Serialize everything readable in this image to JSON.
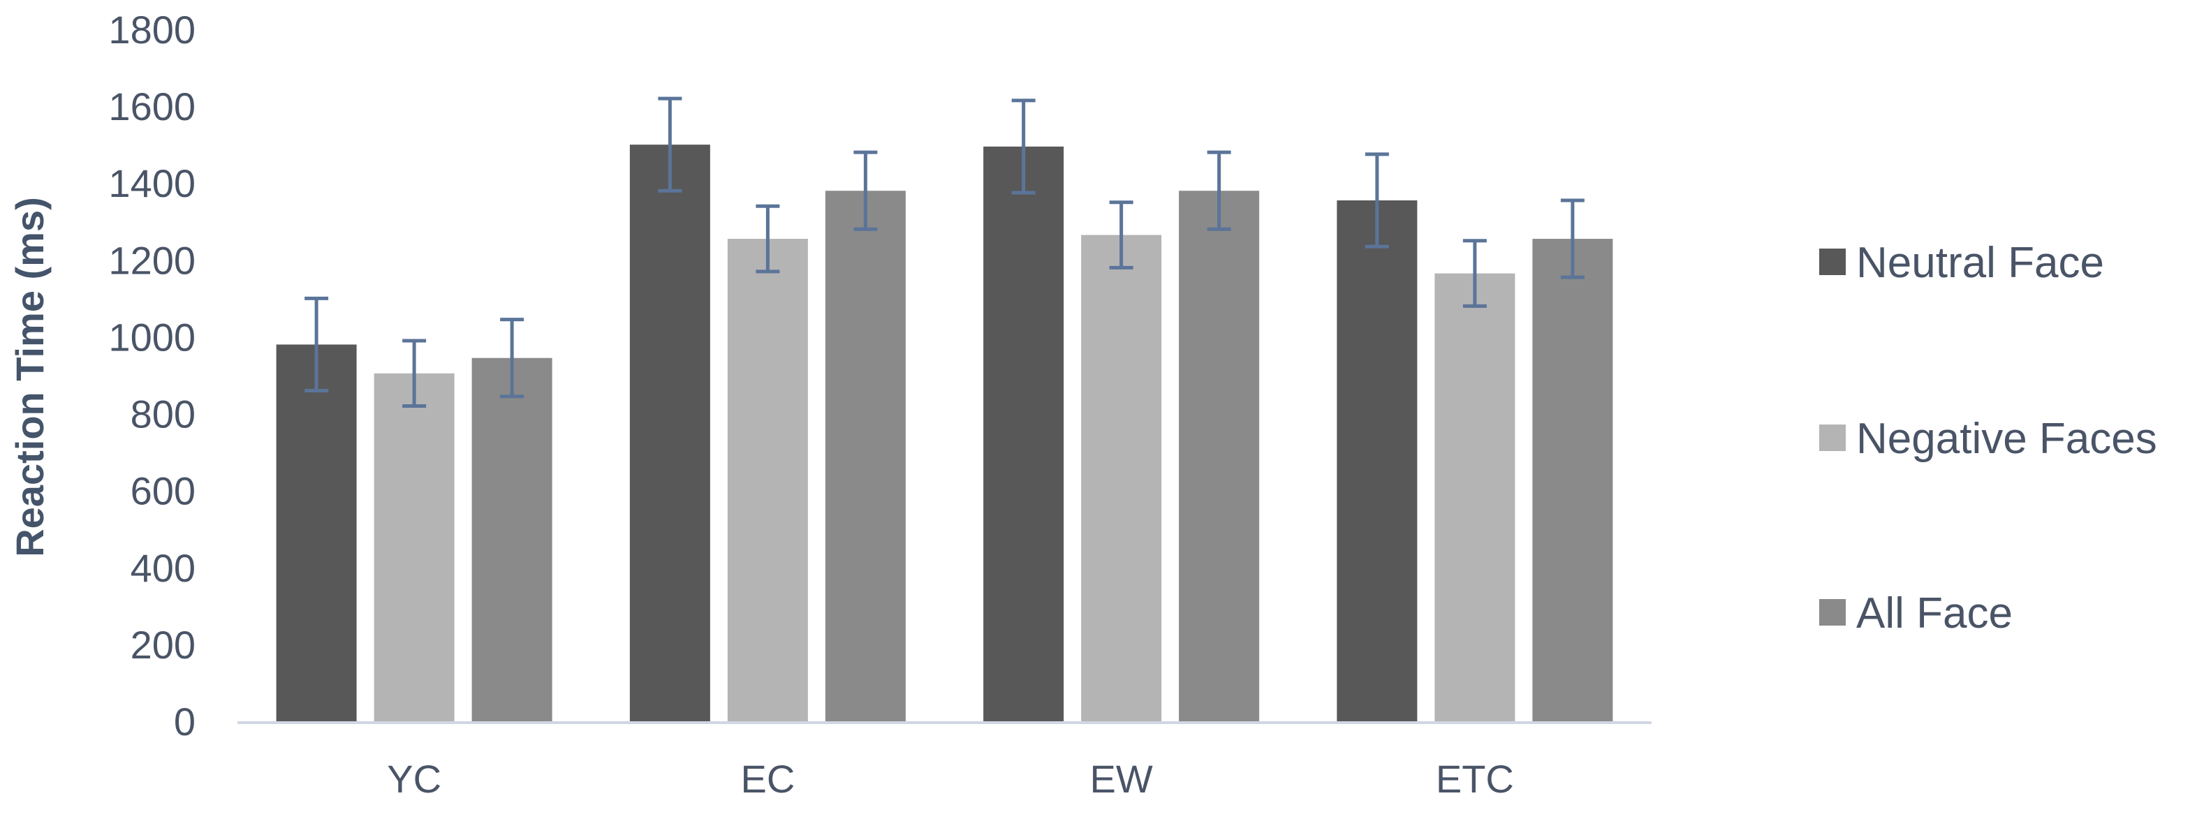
{
  "chart_data": {
    "type": "bar",
    "title": "",
    "xlabel": "",
    "ylabel": "Reaction Time (ms)",
    "ylim": [
      0,
      1800
    ],
    "yticks": [
      0,
      200,
      400,
      600,
      800,
      1000,
      1200,
      1400,
      1600,
      1800
    ],
    "grid": false,
    "legend_position": "right",
    "categories": [
      "YC",
      "EC",
      "EW",
      "ETC"
    ],
    "series": [
      {
        "name": "Neutral Face",
        "color": "#585858",
        "values": [
          980,
          1500,
          1495,
          1355
        ],
        "error": [
          120,
          120,
          120,
          120
        ]
      },
      {
        "name": "Negative Faces",
        "color": "#b4b4b4",
        "values": [
          905,
          1255,
          1265,
          1165
        ],
        "error": [
          85,
          85,
          85,
          85
        ]
      },
      {
        "name": "All Face",
        "color": "#8a8a8a",
        "values": [
          945,
          1380,
          1380,
          1255
        ],
        "error": [
          100,
          100,
          100,
          100
        ]
      }
    ],
    "error_bar_color": "#5b7499",
    "axis_color": "#d0d7e2",
    "text_color": "#4a5467"
  }
}
